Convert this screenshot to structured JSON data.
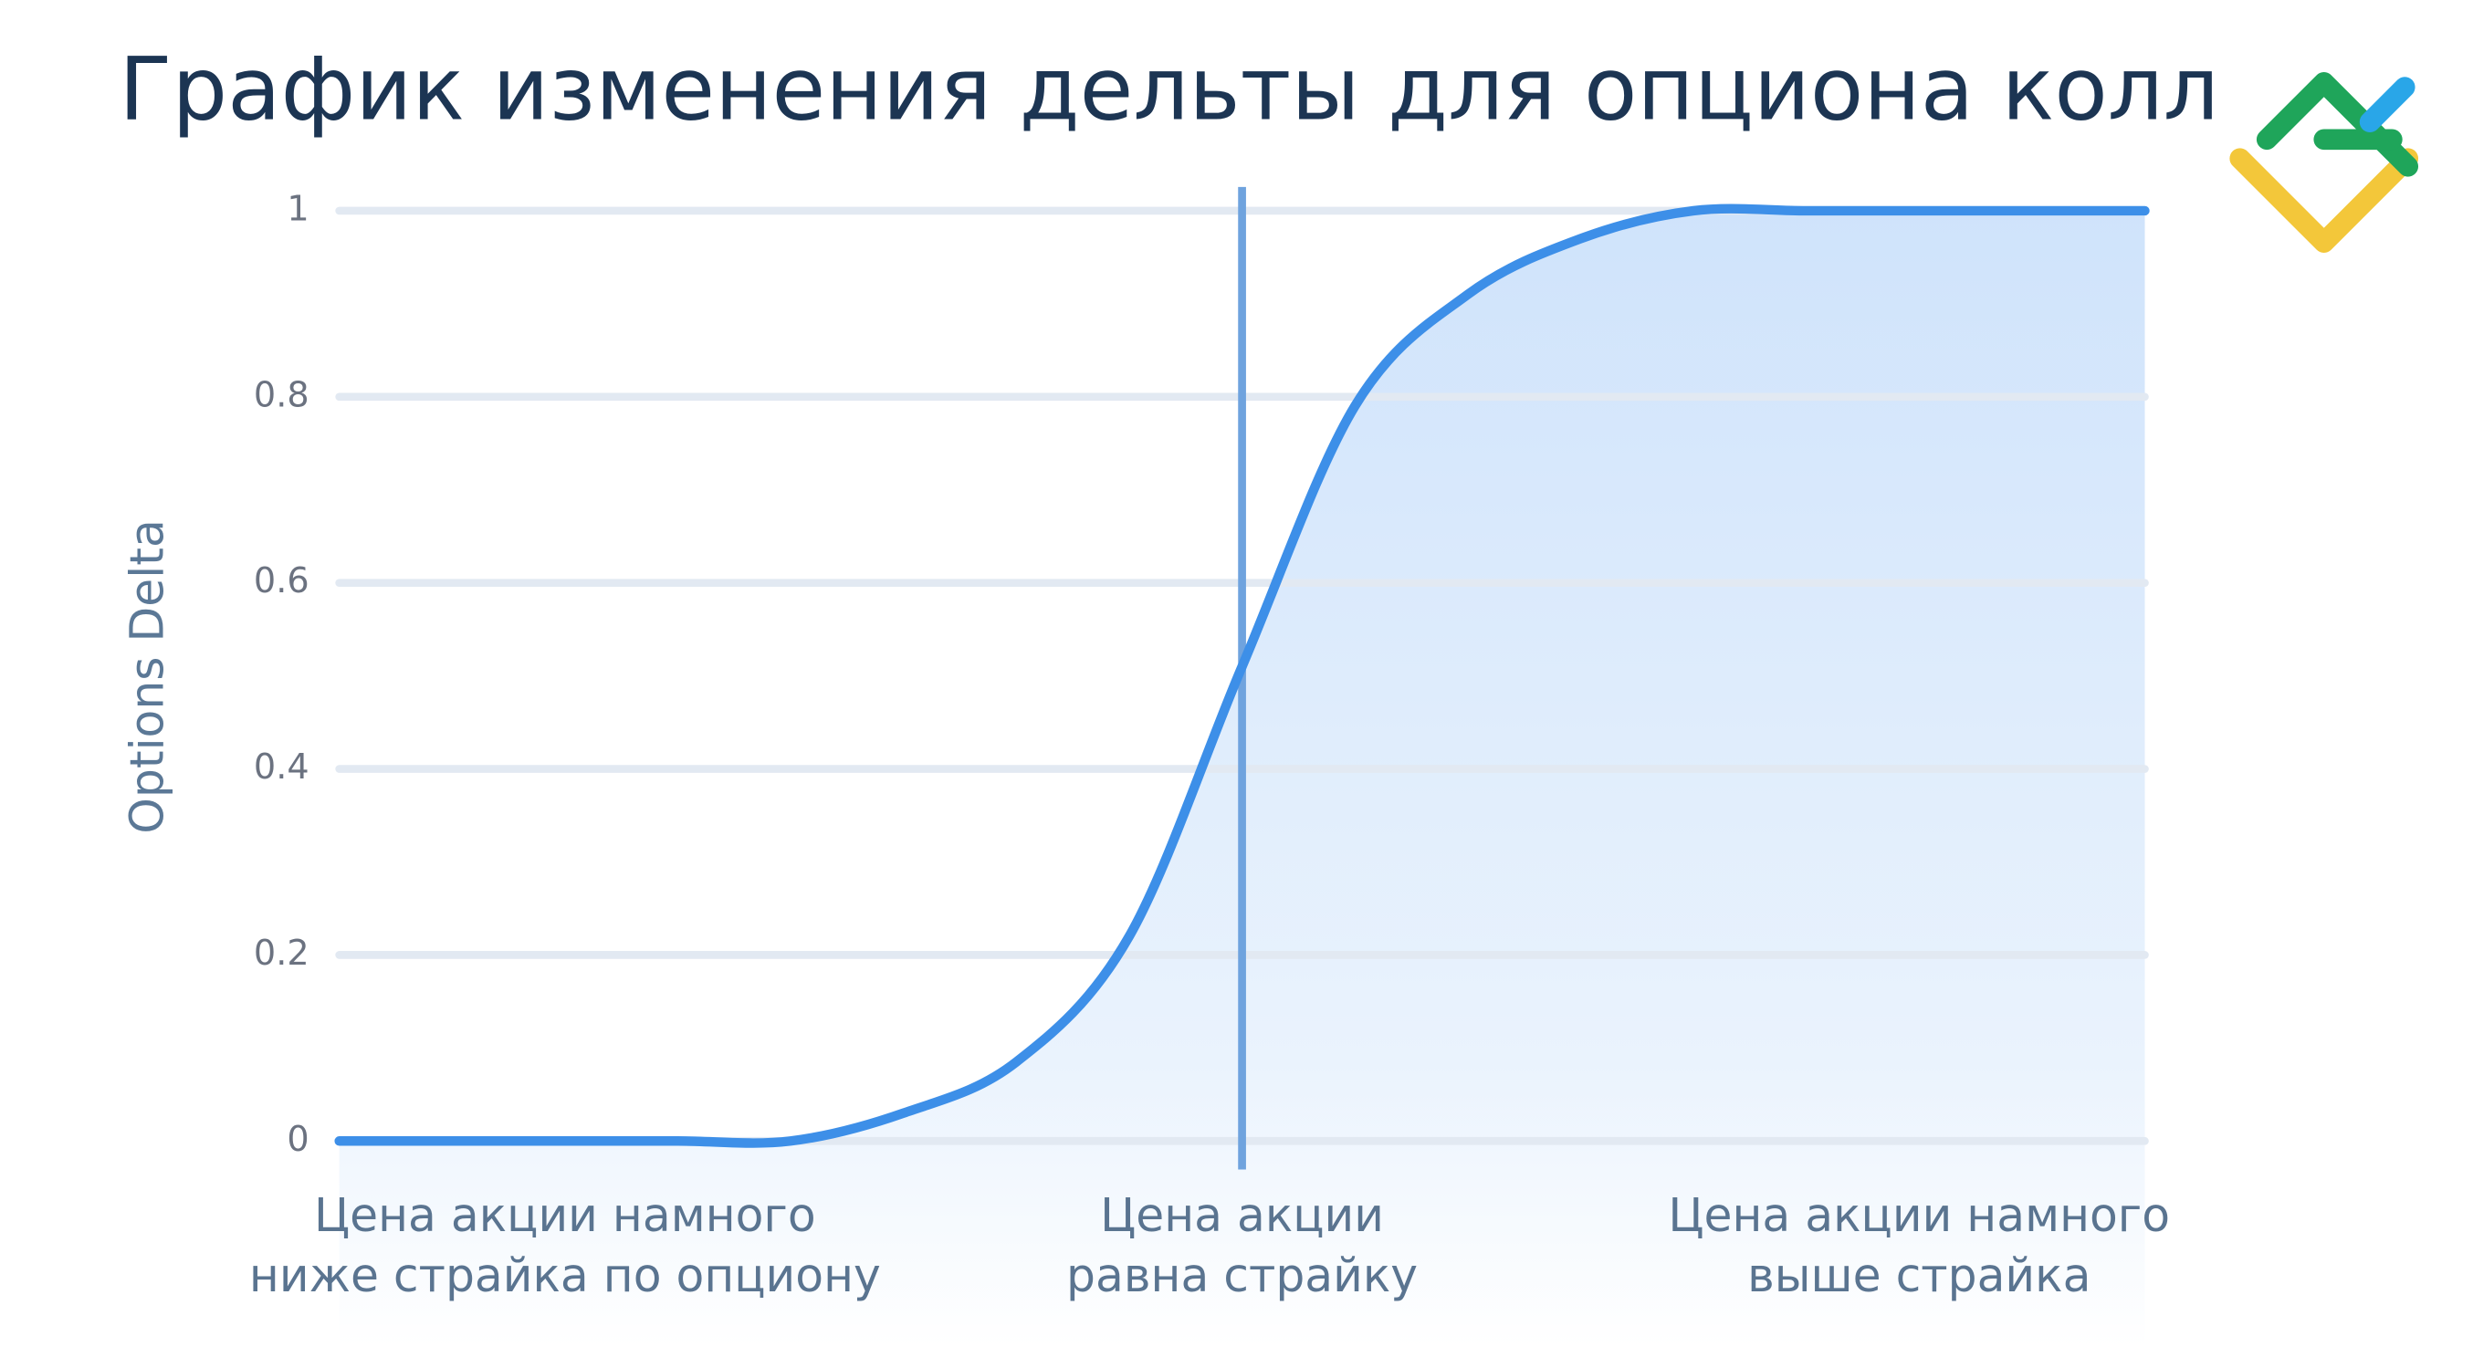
{
  "chart_data": {
    "type": "line",
    "title": "График изменения дельты для опциона колл",
    "y_label": "Options Delta",
    "categories": [
      null,
      null,
      "Цена акции намного\nниже страйка по опциону",
      null,
      null,
      null,
      null,
      null,
      "Цена акции\nравна страйку",
      null,
      null,
      null,
      null,
      null,
      "Цена акции намного\nвыше страйка",
      null,
      null
    ],
    "series": [
      {
        "color": "#3d8fe8",
        "values": [
          0,
          0,
          0,
          0,
          0,
          0.03,
          0.085,
          0.22,
          0.51,
          0.79,
          0.91,
          0.97,
          1,
          1,
          1,
          1,
          1
        ]
      }
    ],
    "ylim": [
      0,
      1
    ],
    "yticks": [
      0,
      0.2,
      0.4,
      0.6,
      0.8,
      1
    ],
    "grid": true
  }
}
